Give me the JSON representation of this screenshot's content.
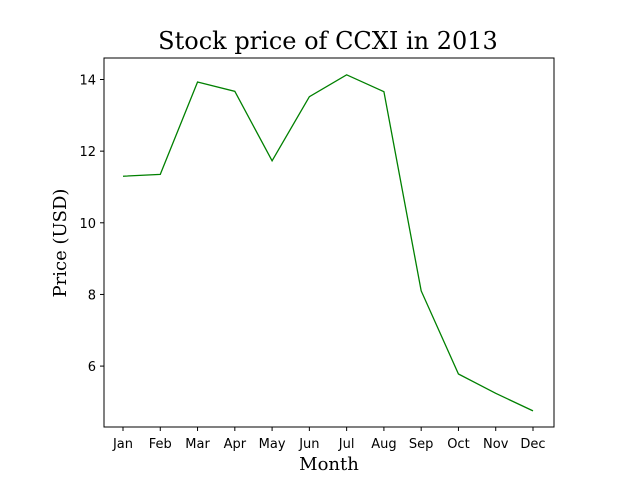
{
  "chart_data": {
    "type": "line",
    "title": "Stock price of CCXI in 2013",
    "xlabel": "Month",
    "ylabel": "Price (USD)",
    "categories": [
      "Jan",
      "Feb",
      "Mar",
      "Apr",
      "May",
      "Jun",
      "Jul",
      "Aug",
      "Sep",
      "Oct",
      "Nov",
      "Dec"
    ],
    "series": [
      {
        "values": [
          11.3,
          11.35,
          13.93,
          13.67,
          11.73,
          13.52,
          14.13,
          13.66,
          8.1,
          5.78,
          5.24,
          4.75
        ],
        "color": "#008000"
      }
    ],
    "yticks": [
      6,
      8,
      10,
      12,
      14
    ],
    "ylim": [
      4.3,
      14.6
    ],
    "grid": false,
    "legend": "none"
  }
}
